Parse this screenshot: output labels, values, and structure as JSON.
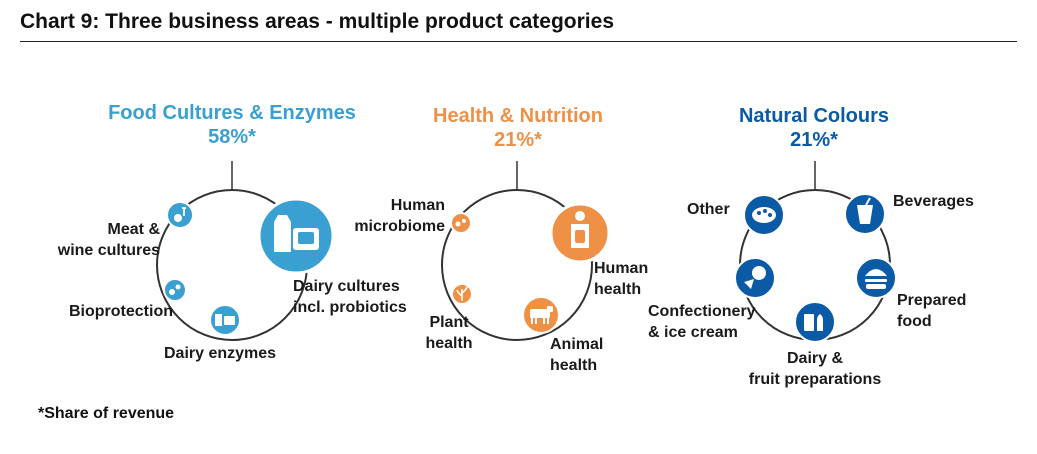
{
  "title": "Chart 9: Three business areas - multiple product categories",
  "footnote": "*Share of revenue",
  "colors": {
    "food": "#3a9fd1",
    "health": "#ee9146",
    "natural": "#0b5aa5",
    "ring": "#333333"
  },
  "groups": [
    {
      "name": "Food Cultures & Enzymes",
      "share": "58%*",
      "categories": [
        {
          "label": "Meat &\nwine cultures",
          "icon": "meat-wine-icon"
        },
        {
          "label": "Dairy cultures\nincl. probiotics",
          "icon": "dairy-cultures-icon"
        },
        {
          "label": "Bioprotection",
          "icon": "bioprotection-icon"
        },
        {
          "label": "Dairy enzymes",
          "icon": "dairy-enzymes-icon"
        }
      ]
    },
    {
      "name": "Health & Nutrition",
      "share": "21%*",
      "categories": [
        {
          "label": "Human\nmicrobiome",
          "icon": "microbiome-icon"
        },
        {
          "label": "Human\nhealth",
          "icon": "human-body-icon"
        },
        {
          "label": "Plant\nhealth",
          "icon": "plant-icon"
        },
        {
          "label": "Animal\nhealth",
          "icon": "cow-icon"
        }
      ]
    },
    {
      "name": "Natural Colours",
      "share": "21%*",
      "categories": [
        {
          "label": "Other",
          "icon": "palette-icon"
        },
        {
          "label": "Beverages",
          "icon": "cup-icon"
        },
        {
          "label": "Confectionery\n& ice cream",
          "icon": "ice-cream-icon"
        },
        {
          "label": "Prepared\nfood",
          "icon": "burger-icon"
        },
        {
          "label": "Dairy &\nfruit preparations",
          "icon": "milk-bottle-icon"
        }
      ]
    }
  ]
}
